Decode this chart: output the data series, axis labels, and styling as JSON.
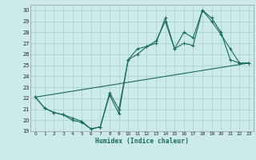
{
  "xlabel": "Humidex (Indice chaleur)",
  "xlim": [
    -0.5,
    23.5
  ],
  "ylim": [
    19,
    30.5
  ],
  "yticks": [
    19,
    20,
    21,
    22,
    23,
    24,
    25,
    26,
    27,
    28,
    29,
    30
  ],
  "xticks": [
    0,
    1,
    2,
    3,
    4,
    5,
    6,
    7,
    8,
    9,
    10,
    11,
    12,
    13,
    14,
    15,
    16,
    17,
    18,
    19,
    20,
    21,
    22,
    23
  ],
  "bg_color": "#cceae8",
  "grid_color": "#aad4d0",
  "line_color": "#1a6b5a",
  "line1_x": [
    0,
    1,
    2,
    3,
    4,
    5,
    6,
    7,
    8,
    9,
    10,
    11,
    12,
    13,
    14,
    15,
    16,
    17,
    18,
    19,
    20,
    21,
    22,
    23
  ],
  "line1_y": [
    22.1,
    21.1,
    20.7,
    20.5,
    20.0,
    19.8,
    19.2,
    19.4,
    22.3,
    20.6,
    25.5,
    26.5,
    26.7,
    27.0,
    29.3,
    26.5,
    27.0,
    26.8,
    30.0,
    29.3,
    28.0,
    25.5,
    25.2,
    25.2
  ],
  "line2_x": [
    0,
    1,
    2,
    3,
    4,
    5,
    6,
    7,
    8,
    9,
    10,
    11,
    12,
    13,
    14,
    15,
    16,
    17,
    18,
    19,
    20,
    21,
    22,
    23
  ],
  "line2_y": [
    22.1,
    21.1,
    20.7,
    20.5,
    20.2,
    19.9,
    19.2,
    19.4,
    22.5,
    21.0,
    25.5,
    26.0,
    26.7,
    27.2,
    29.0,
    26.5,
    28.0,
    27.5,
    30.0,
    29.0,
    27.8,
    26.5,
    25.2,
    25.2
  ],
  "line3_x": [
    0,
    23
  ],
  "line3_y": [
    22.1,
    25.2
  ]
}
